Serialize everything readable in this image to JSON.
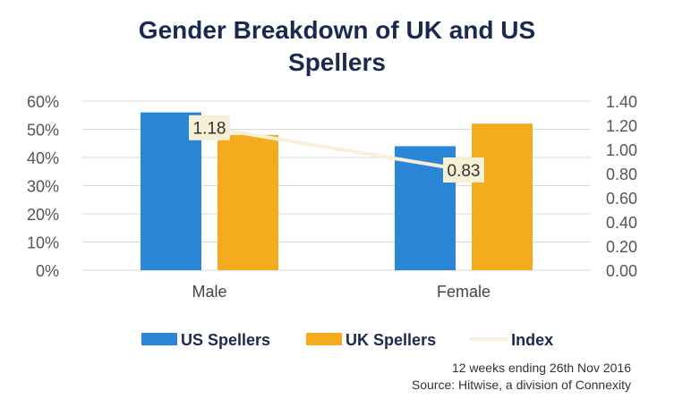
{
  "chart_data": {
    "type": "bar",
    "title": "Gender Breakdown of UK and US Spellers",
    "title_lines": [
      "Gender Breakdown of UK and US",
      "Spellers"
    ],
    "categories": [
      "Male",
      "Female"
    ],
    "series": [
      {
        "name": "US Spellers",
        "type": "bar",
        "axis": "left",
        "color": "#2a86d6",
        "values": [
          0.56,
          0.44
        ]
      },
      {
        "name": "UK Spellers",
        "type": "bar",
        "axis": "left",
        "color": "#f5ab1e",
        "values": [
          0.48,
          0.52
        ]
      },
      {
        "name": "Index",
        "type": "line",
        "axis": "right",
        "color": "#f7efd6",
        "values": [
          1.18,
          0.83
        ],
        "data_labels": [
          "1.18",
          "0.83"
        ]
      }
    ],
    "y_left": {
      "ticks": [
        "0%",
        "10%",
        "20%",
        "30%",
        "40%",
        "50%",
        "60%"
      ],
      "range": [
        0,
        0.6
      ]
    },
    "y_right": {
      "ticks": [
        "0.00",
        "0.20",
        "0.40",
        "0.60",
        "0.80",
        "1.00",
        "1.20",
        "1.40"
      ],
      "range": [
        0,
        1.4
      ]
    },
    "grid": true,
    "legend_position": "bottom"
  },
  "source_lines": [
    "12 weeks ending 26th Nov 2016",
    "Source: Hitwise, a division of Connexity"
  ]
}
